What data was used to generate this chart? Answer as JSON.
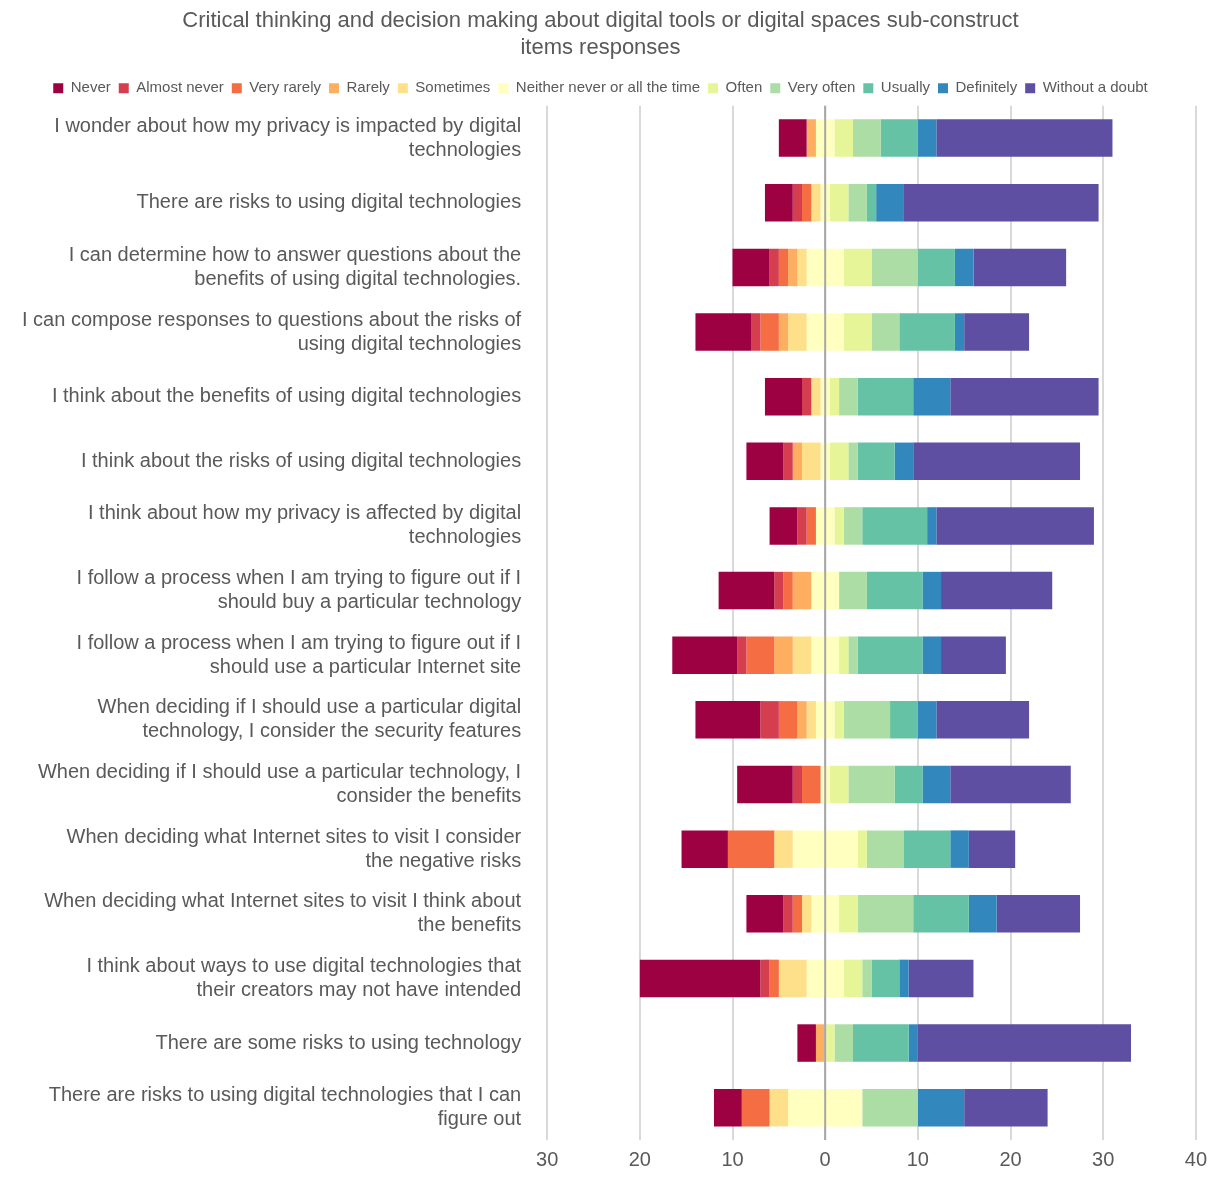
{
  "chart_data": {
    "type": "bar",
    "orientation": "horizontal",
    "title": "Critical thinking and decision making about digital tools or digital spaces sub-construct items responses",
    "categories": [
      "I wonder about how my privacy is impacted by digital technologies",
      "There are risks to using digital technologies",
      "I can determine how to answer questions about the benefits of using digital technologies.",
      "I can compose responses to questions about the risks of using digital technologies",
      "I think about the benefits of using digital technologies",
      "I think about the risks of using digital technologies",
      "I think about how my privacy is affected by digital technologies",
      "I follow a process when I am trying to figure out if I should buy a particular technology",
      "I follow a process when I am trying to figure out if I should use a particular Internet site",
      "When deciding if I should use a particular digital technology, I consider the security features",
      "When deciding if I should use a particular technology, I consider the benefits",
      "When deciding what Internet sites to visit I consider the negative risks",
      "When deciding what Internet sites to visit I think about the benefits",
      "I think about ways to use digital technologies that their creators may not have intended",
      "There are some risks to using technology",
      "There are risks to using digital technologies that I can figure out"
    ],
    "series": [
      {
        "name": "Never",
        "color": "#9e0142",
        "base": [
          -5,
          -6.5,
          -10,
          -14,
          -6.5,
          -8.5,
          -6,
          -11.5,
          -16.5,
          -14,
          -9.5,
          -15.5,
          -8.5,
          -20,
          -3,
          -12
        ],
        "values": [
          3,
          3,
          4,
          6,
          4,
          4,
          3,
          6,
          7,
          7,
          6,
          5,
          4,
          13,
          2,
          3
        ]
      },
      {
        "name": "Almost never",
        "color": "#d53e4f",
        "base": [
          null,
          -3.5,
          -6,
          -8,
          -2.5,
          -4.5,
          -3,
          -5.5,
          -9.5,
          -7,
          -3.5,
          null,
          -4.5,
          -7,
          null,
          null
        ],
        "values": [
          null,
          1,
          1,
          1,
          1,
          1,
          1,
          1,
          1,
          2,
          1,
          null,
          1,
          1,
          null,
          null
        ]
      },
      {
        "name": "Very rarely",
        "color": "#f46d43",
        "base": [
          null,
          -2.5,
          -5,
          -7,
          null,
          null,
          -2,
          -4.5,
          -8.5,
          -5,
          -2.5,
          -10.5,
          -3.5,
          -6,
          null,
          -9
        ],
        "values": [
          null,
          1,
          1,
          2,
          null,
          null,
          1,
          1,
          3,
          2,
          2,
          5,
          1,
          1,
          null,
          3
        ]
      },
      {
        "name": "Rarely",
        "color": "#fdae61",
        "base": [
          -2,
          null,
          -4,
          -5,
          null,
          -3.5,
          null,
          -3.5,
          -5.5,
          -3,
          null,
          null,
          null,
          null,
          -1,
          null
        ],
        "values": [
          1,
          null,
          1,
          1,
          null,
          1,
          null,
          2,
          2,
          1,
          null,
          null,
          null,
          null,
          1,
          null
        ]
      },
      {
        "name": "Sometimes",
        "color": "#fee08b",
        "base": [
          null,
          -1.5,
          -3,
          -4,
          -1.5,
          -2.5,
          null,
          null,
          -3.5,
          -2,
          null,
          -5.5,
          -2.5,
          -5,
          null,
          -6
        ],
        "values": [
          null,
          1,
          1,
          2,
          1,
          2,
          null,
          null,
          2,
          1,
          null,
          2,
          1,
          3,
          null,
          2
        ]
      },
      {
        "name": "Neither never or all the time",
        "color": "#ffffbf",
        "base": [
          -1,
          -0.5,
          -2,
          -2,
          -0.5,
          -0.5,
          -1,
          -1.5,
          -1.5,
          -1,
          -0.5,
          -3.5,
          -1.5,
          -2,
          null,
          -4
        ],
        "values": [
          2,
          1,
          4,
          4,
          1,
          1,
          2,
          3,
          3,
          2,
          1,
          7,
          3,
          4,
          null,
          8
        ]
      },
      {
        "name": "Often",
        "color": "#e6f598",
        "base": [
          1,
          0.5,
          2,
          2,
          0.5,
          0.5,
          1,
          null,
          1.5,
          1,
          0.5,
          3.5,
          1.5,
          2,
          0,
          null
        ],
        "values": [
          2,
          2,
          3,
          3,
          1,
          2,
          1,
          null,
          1,
          1,
          2,
          1,
          2,
          2,
          1,
          null
        ]
      },
      {
        "name": "Very often",
        "color": "#abdda4",
        "base": [
          3,
          2.5,
          5,
          5,
          1.5,
          2.5,
          2,
          1.5,
          2.5,
          2,
          2.5,
          4.5,
          3.5,
          4,
          1,
          4
        ],
        "values": [
          3,
          2,
          5,
          3,
          2,
          1,
          2,
          3,
          1,
          5,
          5,
          4,
          6,
          1,
          2,
          6
        ]
      },
      {
        "name": "Usually",
        "color": "#66c2a5",
        "base": [
          6,
          4.5,
          10,
          8,
          3.5,
          3.5,
          4,
          4.5,
          3.5,
          7,
          7.5,
          8.5,
          9.5,
          5,
          3,
          null
        ],
        "values": [
          4,
          1,
          4,
          6,
          6,
          4,
          7,
          6,
          7,
          3,
          3,
          5,
          6,
          3,
          6,
          null
        ]
      },
      {
        "name": "Definitely",
        "color": "#3288bd",
        "base": [
          10,
          5.5,
          14,
          14,
          9.5,
          7.5,
          11,
          10.5,
          10.5,
          10,
          10.5,
          13.5,
          15.5,
          8,
          9,
          10
        ],
        "values": [
          2,
          3,
          2,
          1,
          4,
          2,
          1,
          2,
          2,
          2,
          3,
          2,
          3,
          1,
          1,
          5
        ]
      },
      {
        "name": "Without a doubt",
        "color": "#5e4fa2",
        "base": [
          12,
          8.5,
          16,
          15,
          13.5,
          9.5,
          12,
          12.5,
          12.5,
          12,
          13.5,
          15.5,
          18.5,
          9,
          10,
          15
        ],
        "values": [
          19,
          21,
          10,
          7,
          16,
          18,
          17,
          12,
          7,
          10,
          13,
          5,
          9,
          7,
          23,
          9
        ]
      }
    ],
    "xlim": [
      -30,
      40
    ],
    "xticks": [
      {
        "value": -30,
        "label": "30"
      },
      {
        "value": -20,
        "label": "20"
      },
      {
        "value": -10,
        "label": "10"
      },
      0,
      10,
      20,
      30,
      40
    ],
    "ref_lines": [
      {
        "axis": "x",
        "value": 0,
        "color": "#a6a6a6"
      }
    ],
    "grid": "x",
    "legend": "top"
  }
}
